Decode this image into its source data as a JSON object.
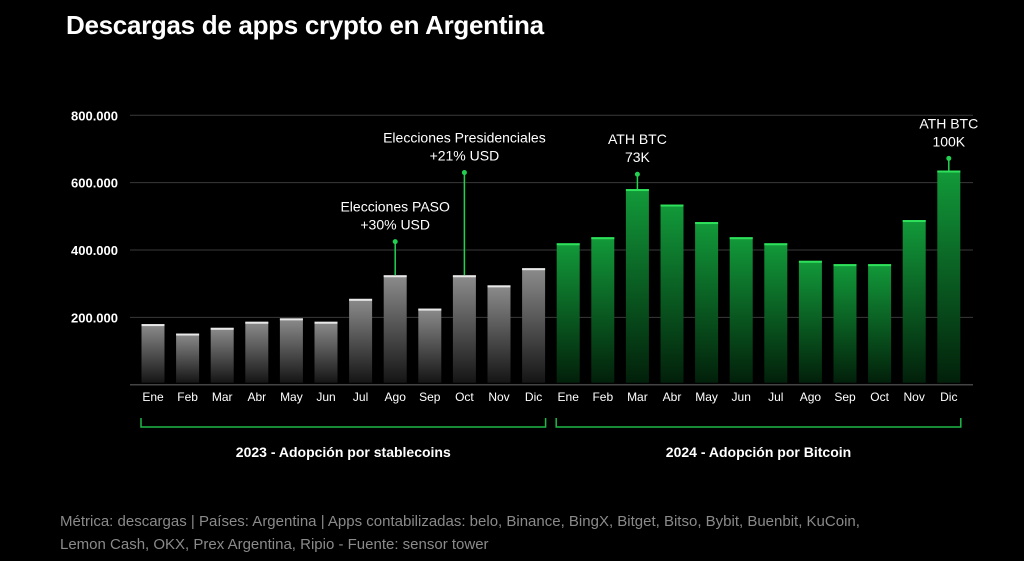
{
  "chart_data": {
    "type": "bar",
    "title": "Descargas de apps crypto en Argentina",
    "categories": [
      "Ene",
      "Feb",
      "Mar",
      "Abr",
      "May",
      "Jun",
      "Jul",
      "Ago",
      "Sep",
      "Oct",
      "Nov",
      "Dic",
      "Ene",
      "Feb",
      "Mar",
      "Abr",
      "May",
      "Jun",
      "Jul",
      "Ago",
      "Sep",
      "Oct",
      "Nov",
      "Dic"
    ],
    "values": [
      180000,
      152000,
      169000,
      187000,
      197000,
      187000,
      255000,
      325000,
      226000,
      325000,
      295000,
      346000,
      420000,
      438000,
      581000,
      535000,
      483000,
      438000,
      420000,
      368000,
      358000,
      358000,
      489000,
      636000
    ],
    "groups": [
      {
        "label": "2023 - Adopción por stablecoins",
        "start": 0,
        "end": 11,
        "color": "#9a9a9a"
      },
      {
        "label": "2024 - Adopción por Bitcoin",
        "start": 12,
        "end": 23,
        "color": "#1fb84a"
      }
    ],
    "yticks": [
      200000,
      400000,
      600000,
      800000
    ],
    "ytick_labels": [
      "200.000",
      "400.000",
      "600.000",
      "800.000"
    ],
    "ylim": [
      0,
      800000
    ],
    "grid": true,
    "annotations": [
      {
        "index": 7,
        "lines": [
          "Elecciones PASO",
          "+30% USD"
        ],
        "marker_value": 425000
      },
      {
        "index": 9,
        "lines": [
          "Elecciones Presidenciales",
          "+21% USD"
        ],
        "marker_value": 630000
      },
      {
        "index": 14,
        "lines": [
          "ATH BTC",
          "73K"
        ],
        "marker_value": 625000
      },
      {
        "index": 23,
        "lines": [
          "ATH BTC",
          "100K"
        ],
        "marker_value": 672000
      }
    ],
    "accent_color": "#22d24f"
  },
  "footer": {
    "line1": "Métrica: descargas | Países: Argentina | Apps contabilizadas: belo, Binance, BingX, Bitget, Bitso, Bybit, Buenbit, KuCoin,",
    "line2": "Lemon Cash, OKX, Prex Argentina, Ripio - Fuente: sensor tower"
  }
}
